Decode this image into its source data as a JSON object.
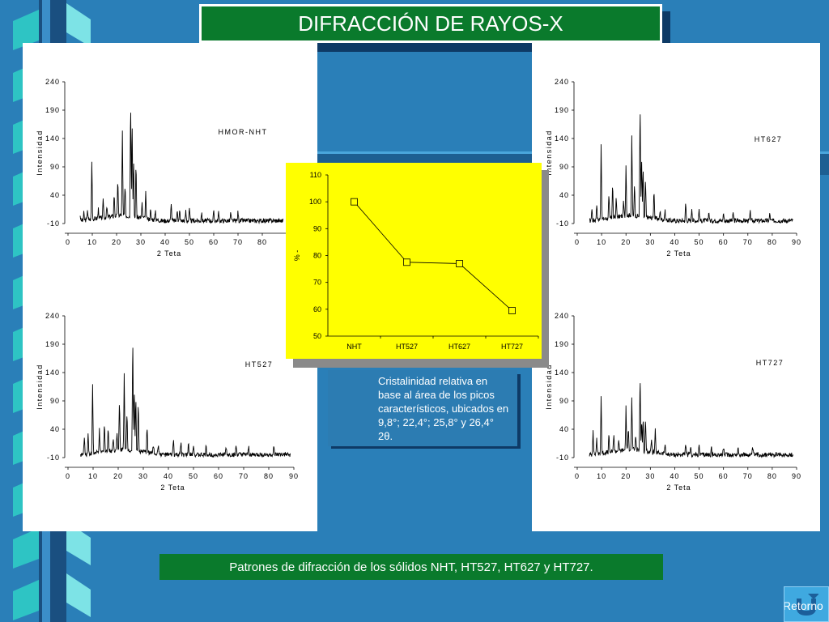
{
  "title": "DIFRACCIÓN DE RAYOS-X",
  "caption": "Patrones de difracción de los sólidos NHT, HT527, HT627 y HT727.",
  "note": "Cristalinidad relativa en base al área de los picos característicos, ubicados en  9,8°; 22,4°; 25,8° y 26,4° 2θ.",
  "retorno_label": "Retorno",
  "colors": {
    "background": "#2a7fb8",
    "title_bg": "#0a7a2c",
    "center_chart_bg": "#ffff00"
  },
  "chart_data": [
    {
      "type": "line",
      "name": "HMOR-NHT",
      "title": "HMOR-NHT",
      "xlabel": "2 Teta",
      "ylabel": "Intensidad",
      "xticks": [
        "0",
        "10",
        "20",
        "30",
        "40",
        "50",
        "60",
        "70",
        "80"
      ],
      "yticks": [
        "-10",
        "40",
        "90",
        "140",
        "190",
        "240"
      ],
      "xlim": [
        0,
        90
      ],
      "ylim": [
        -10,
        240
      ],
      "baseline": -5,
      "peaks": [
        [
          5,
          5
        ],
        [
          6.5,
          8
        ],
        [
          8,
          14
        ],
        [
          9.8,
          98
        ],
        [
          12.5,
          12
        ],
        [
          14.5,
          30
        ],
        [
          16,
          14
        ],
        [
          19,
          36
        ],
        [
          20.5,
          62
        ],
        [
          22.4,
          142
        ],
        [
          23.5,
          54
        ],
        [
          25.8,
          212
        ],
        [
          26.4,
          176
        ],
        [
          27,
          104
        ],
        [
          28,
          96
        ],
        [
          30.5,
          20
        ],
        [
          32,
          40
        ],
        [
          34,
          12
        ],
        [
          36,
          14
        ],
        [
          42.5,
          28
        ],
        [
          45,
          18
        ],
        [
          46,
          14
        ],
        [
          48.5,
          12
        ],
        [
          50,
          16
        ],
        [
          55,
          10
        ],
        [
          60,
          12
        ],
        [
          62,
          10
        ],
        [
          67,
          10
        ],
        [
          70,
          12
        ]
      ]
    },
    {
      "type": "line",
      "name": "HT527",
      "title": "HT527",
      "xlabel": "2 Teta",
      "ylabel": "Intensidad",
      "xticks": [
        "0",
        "10",
        "20",
        "30",
        "40",
        "50",
        "60",
        "70",
        "80",
        "90"
      ],
      "yticks": [
        "-10",
        "40",
        "90",
        "140",
        "190",
        "240"
      ],
      "xlim": [
        0,
        90
      ],
      "ylim": [
        -10,
        240
      ],
      "baseline": -5,
      "peaks": [
        [
          6.5,
          28
        ],
        [
          8,
          30
        ],
        [
          9.8,
          118
        ],
        [
          12.5,
          34
        ],
        [
          14.5,
          50
        ],
        [
          16,
          40
        ],
        [
          18,
          20
        ],
        [
          19.5,
          28
        ],
        [
          20.5,
          84
        ],
        [
          22.4,
          130
        ],
        [
          23.5,
          60
        ],
        [
          25.8,
          204
        ],
        [
          26.4,
          110
        ],
        [
          27,
          98
        ],
        [
          28,
          86
        ],
        [
          31.5,
          46
        ],
        [
          34,
          12
        ],
        [
          36,
          14
        ],
        [
          42,
          24
        ],
        [
          45,
          18
        ],
        [
          48,
          16
        ],
        [
          50,
          14
        ],
        [
          55,
          10
        ],
        [
          63,
          10
        ],
        [
          67,
          12
        ],
        [
          72,
          10
        ],
        [
          82,
          8
        ]
      ]
    },
    {
      "type": "line",
      "name": "HT627",
      "title": "HT627",
      "xlabel": "2 Teta",
      "ylabel": "Intensidad",
      "xticks": [
        "0",
        "10",
        "20",
        "30",
        "40",
        "50",
        "60",
        "70",
        "80",
        "90"
      ],
      "yticks": [
        "-10",
        "40",
        "90",
        "140",
        "190",
        "240"
      ],
      "xlim": [
        0,
        90
      ],
      "ylim": [
        -10,
        240
      ],
      "baseline": -5,
      "peaks": [
        [
          6,
          18
        ],
        [
          8,
          24
        ],
        [
          9.8,
          128
        ],
        [
          13,
          36
        ],
        [
          14.5,
          58
        ],
        [
          16,
          30
        ],
        [
          19,
          22
        ],
        [
          20,
          86
        ],
        [
          22.4,
          132
        ],
        [
          23.5,
          54
        ],
        [
          25.8,
          206
        ],
        [
          26.4,
          108
        ],
        [
          27,
          84
        ],
        [
          28,
          64
        ],
        [
          31.5,
          48
        ],
        [
          34,
          10
        ],
        [
          36,
          12
        ],
        [
          44.5,
          28
        ],
        [
          47,
          18
        ],
        [
          50,
          16
        ],
        [
          54,
          12
        ],
        [
          60,
          10
        ],
        [
          64,
          10
        ],
        [
          71,
          10
        ],
        [
          79,
          8
        ]
      ]
    },
    {
      "type": "line",
      "name": "HT727",
      "title": "HT727",
      "xlabel": "2 Teta",
      "ylabel": "Intensidad",
      "xticks": [
        "0",
        "10",
        "20",
        "30",
        "40",
        "50",
        "60",
        "70",
        "80",
        "90"
      ],
      "yticks": [
        "-10",
        "40",
        "90",
        "140",
        "190",
        "240"
      ],
      "xlim": [
        0,
        90
      ],
      "ylim": [
        -10,
        240
      ],
      "baseline": -5,
      "peaks": [
        [
          6.5,
          40
        ],
        [
          8,
          24
        ],
        [
          9.8,
          96
        ],
        [
          13,
          26
        ],
        [
          15,
          30
        ],
        [
          17,
          14
        ],
        [
          20,
          70
        ],
        [
          21,
          36
        ],
        [
          22.4,
          86
        ],
        [
          24,
          22
        ],
        [
          25.8,
          138
        ],
        [
          26.4,
          50
        ],
        [
          27,
          54
        ],
        [
          28,
          58
        ],
        [
          30.5,
          20
        ],
        [
          32,
          34
        ],
        [
          36,
          12
        ],
        [
          44.5,
          16
        ],
        [
          46.5,
          12
        ],
        [
          50,
          10
        ],
        [
          55,
          10
        ],
        [
          60,
          10
        ],
        [
          66,
          8
        ],
        [
          72,
          8
        ]
      ]
    },
    {
      "type": "line",
      "title": "",
      "xlabel": "",
      "ylabel": "% -",
      "categories": [
        "NHT",
        "HT527",
        "HT627",
        "HT727"
      ],
      "values": [
        100,
        77.5,
        77,
        59.5
      ],
      "ylim": [
        50,
        110
      ],
      "yticks": [
        "50",
        "60",
        "70",
        "80",
        "90",
        "100",
        "110"
      ]
    }
  ]
}
